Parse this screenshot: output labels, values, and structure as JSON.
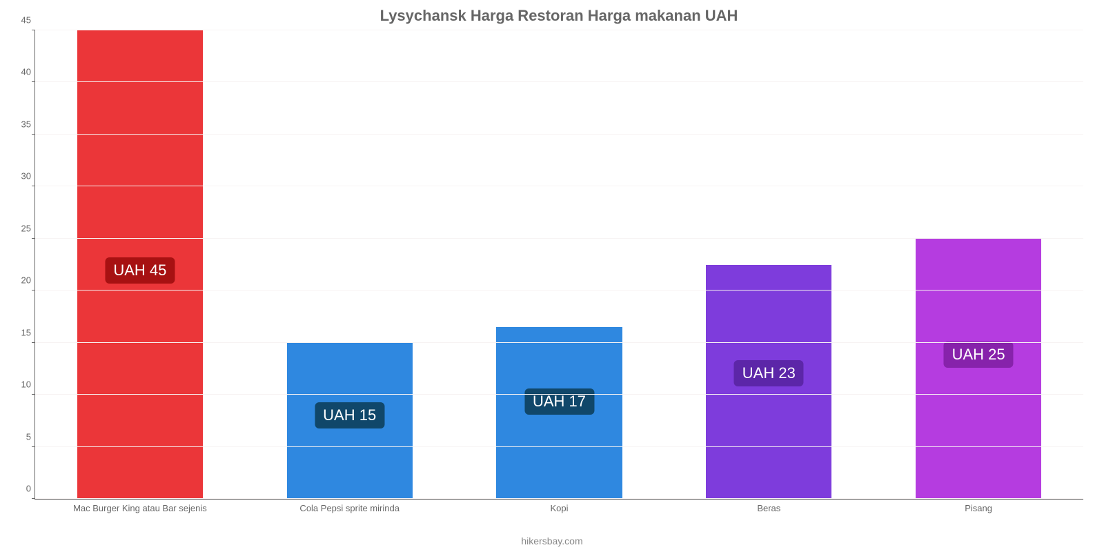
{
  "chart": {
    "type": "bar",
    "title": "Lysychansk Harga Restoran Harga makanan UAH",
    "title_fontsize": 22,
    "title_color": "#666666",
    "attribution": "hikersbay.com",
    "attribution_color": "#888888",
    "background_color": "#ffffff",
    "grid_color": "#f7f3f3",
    "axis_color": "#666666",
    "tick_label_color": "#666666",
    "tick_label_fontsize": 13,
    "x_label_fontsize": 13,
    "currency_prefix": "UAH ",
    "ylim": [
      0,
      45
    ],
    "ytick_step": 5,
    "bar_width_pct": 12,
    "badge_fontsize": 22,
    "badge_radius": 6,
    "series": [
      {
        "category": "Mac Burger King atau Bar sejenis",
        "value": 45,
        "display_value": "UAH 45",
        "bar_color": "#eb3639",
        "badge_bg": "#a71112",
        "badge_bottom_pct": 46
      },
      {
        "category": "Cola Pepsi sprite mirinda",
        "value": 15,
        "display_value": "UAH 15",
        "bar_color": "#2f88e0",
        "badge_bg": "#10476a",
        "badge_bottom_pct": 15
      },
      {
        "category": "Kopi",
        "value": 16.5,
        "display_value": "UAH 17",
        "bar_color": "#2f88e0",
        "badge_bg": "#10476a",
        "badge_bottom_pct": 18
      },
      {
        "category": "Beras",
        "value": 22.5,
        "display_value": "UAH 23",
        "bar_color": "#7e3cdc",
        "badge_bg": "#5c26a8",
        "badge_bottom_pct": 24
      },
      {
        "category": "Pisang",
        "value": 25,
        "display_value": "UAH 25",
        "bar_color": "#b53ce0",
        "badge_bg": "#8722ab",
        "badge_bottom_pct": 28
      }
    ]
  }
}
